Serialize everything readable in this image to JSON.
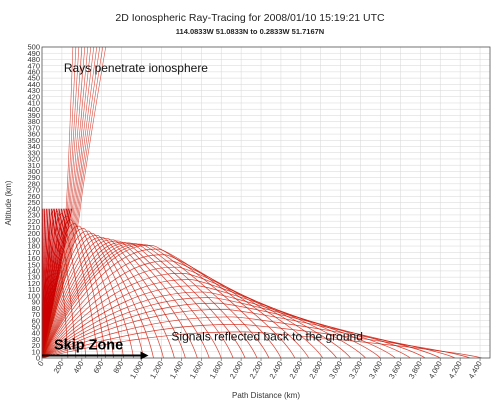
{
  "chart_data": {
    "type": "line",
    "title": "2D Ionospheric Ray-Tracing for 2008/01/10 15:19:21 UTC",
    "subtitle": "114.0833W 51.0833N to  0.2833W 51.7167N",
    "xlabel": "Path Distance (km)",
    "ylabel": "Altitude (km)",
    "xlim": [
      0,
      4500
    ],
    "ylim": [
      0,
      500
    ],
    "x_ticks": [
      0,
      200,
      400,
      600,
      800,
      1000,
      1200,
      1400,
      1600,
      1800,
      2000,
      2200,
      2400,
      2600,
      2800,
      3000,
      3200,
      3400,
      3600,
      3800,
      4000,
      4200,
      4400
    ],
    "x_tick_labels": [
      "0",
      "200",
      "400",
      "600",
      "800",
      "1,000",
      "1,200",
      "1,400",
      "1,600",
      "1,800",
      "2,000",
      "2,200",
      "2,400",
      "2,600",
      "2,800",
      "3,000",
      "3,200",
      "3,400",
      "3,600",
      "3,800",
      "4,000",
      "4,200",
      "4,400"
    ],
    "y_ticks": [
      0,
      10,
      20,
      30,
      40,
      50,
      60,
      70,
      80,
      90,
      100,
      110,
      120,
      130,
      140,
      150,
      160,
      170,
      180,
      190,
      200,
      210,
      220,
      230,
      240,
      250,
      260,
      270,
      280,
      290,
      300,
      310,
      320,
      330,
      340,
      350,
      360,
      370,
      380,
      390,
      400,
      410,
      420,
      430,
      440,
      450,
      460,
      470,
      480,
      490,
      500
    ],
    "grid": true,
    "ray_color": "#cc1100",
    "penetrating_rays_landing_km": [],
    "penetrating_ray_count": 12,
    "reflected_rays": [
      {
        "land": 260,
        "peak": 238
      },
      {
        "land": 340,
        "peak": 236
      },
      {
        "land": 440,
        "peak": 232
      },
      {
        "land": 560,
        "peak": 228
      },
      {
        "land": 640,
        "peak": 222
      },
      {
        "land": 720,
        "peak": 216
      },
      {
        "land": 820,
        "peak": 212
      },
      {
        "land": 920,
        "peak": 208
      },
      {
        "land": 1020,
        "peak": 204
      },
      {
        "land": 1120,
        "peak": 200
      },
      {
        "land": 1220,
        "peak": 197
      },
      {
        "land": 1330,
        "peak": 194
      },
      {
        "land": 1440,
        "peak": 192
      },
      {
        "land": 1560,
        "peak": 190
      },
      {
        "land": 1680,
        "peak": 188
      },
      {
        "land": 1800,
        "peak": 186
      },
      {
        "land": 1920,
        "peak": 185
      },
      {
        "land": 2040,
        "peak": 184
      },
      {
        "land": 2160,
        "peak": 183
      },
      {
        "land": 2280,
        "peak": 182
      },
      {
        "land": 2400,
        "peak": 181
      },
      {
        "land": 2540,
        "peak": 175
      },
      {
        "land": 2680,
        "peak": 166
      },
      {
        "land": 2820,
        "peak": 156
      },
      {
        "land": 2960,
        "peak": 146
      },
      {
        "land": 3100,
        "peak": 136
      },
      {
        "land": 3250,
        "peak": 126
      },
      {
        "land": 3400,
        "peak": 116
      },
      {
        "land": 3550,
        "peak": 106
      },
      {
        "land": 3700,
        "peak": 97
      },
      {
        "land": 3850,
        "peak": 88
      },
      {
        "land": 4000,
        "peak": 78
      },
      {
        "land": 4150,
        "peak": 66
      },
      {
        "land": 4300,
        "peak": 54
      },
      {
        "land": 4420,
        "peak": 42
      }
    ],
    "annotations": [
      {
        "key": "penetrate",
        "text": "Rays penetrate ionosphere",
        "x": 220,
        "y": 460
      },
      {
        "key": "reflected",
        "text": "Signals reflected back to the ground",
        "x": 1300,
        "y": 28
      },
      {
        "key": "skip",
        "text": "Skip Zone",
        "x": 120,
        "y": 14
      }
    ],
    "skip_zone_arrow": {
      "from_km": 0,
      "to_km": 1050,
      "altitude_km": 4
    }
  }
}
